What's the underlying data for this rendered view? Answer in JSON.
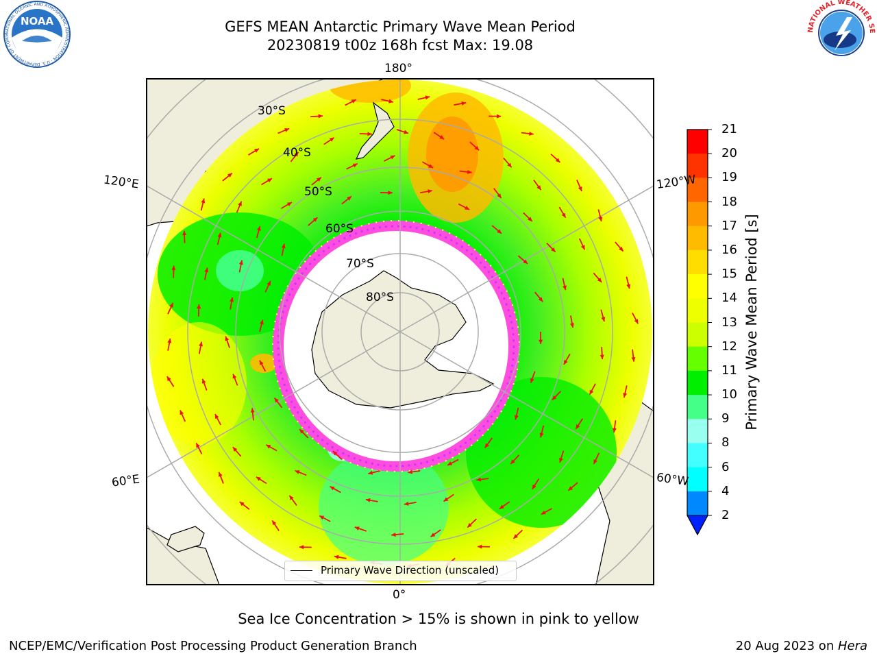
{
  "title": {
    "line1": "GEFS MEAN Antarctic Primary Wave Mean Period",
    "line2": "20230819 t00z 168h fcst   Max: 19.08"
  },
  "logos": {
    "left": {
      "name": "noaa-logo",
      "text": "NOAA",
      "ring_text": "NATIONAL OCEANIC AND ATMOSPHERIC ADMINISTRATION · U.S. DEPARTMENT OF COMMERCE",
      "color": "#1e5aa8"
    },
    "right": {
      "name": "nws-logo",
      "ring_text": "NATIONAL WEATHER SERVICE",
      "color": "#e0242a"
    }
  },
  "map": {
    "projection": "south-polar-stereographic",
    "longitude_labels": [
      "180°",
      "120°E",
      "120°W",
      "60°E",
      "60°W",
      "0°"
    ],
    "latitude_labels": [
      "30°S",
      "40°S",
      "50°S",
      "60°S",
      "70°S",
      "80°S"
    ],
    "legend_text": "Primary Wave Direction (unscaled)",
    "colors": {
      "land": "#efeedc",
      "ice_interior": "#ffffff",
      "ice_edge": [
        "#ff4de0",
        "#cc33ff",
        "#ffff66"
      ],
      "arrow": "#ee1111"
    }
  },
  "colorbar": {
    "title": "Primary Wave Mean Period [s]",
    "ticks": [
      "21",
      "20",
      "19",
      "18",
      "17",
      "16",
      "15",
      "14",
      "13",
      "12",
      "11",
      "10",
      "9",
      "8",
      "6",
      "4",
      "2"
    ],
    "colors": [
      "#ff0000",
      "#ff3300",
      "#ff6600",
      "#ff9900",
      "#ffbb00",
      "#ffdd00",
      "#ffff00",
      "#eeff00",
      "#ccff00",
      "#66ff00",
      "#00ee00",
      "#44ff88",
      "#99ffee",
      "#44ffff",
      "#00ffff",
      "#0088ff"
    ],
    "extend_color": "#0022ff"
  },
  "ice_note": "Sea Ice Concentration > 15% is shown in pink to yellow",
  "footer": {
    "left": "NCEP/EMC/Verification Post Processing Product Generation Branch",
    "date": "20 Aug 2023 on ",
    "machine": "Hera"
  }
}
